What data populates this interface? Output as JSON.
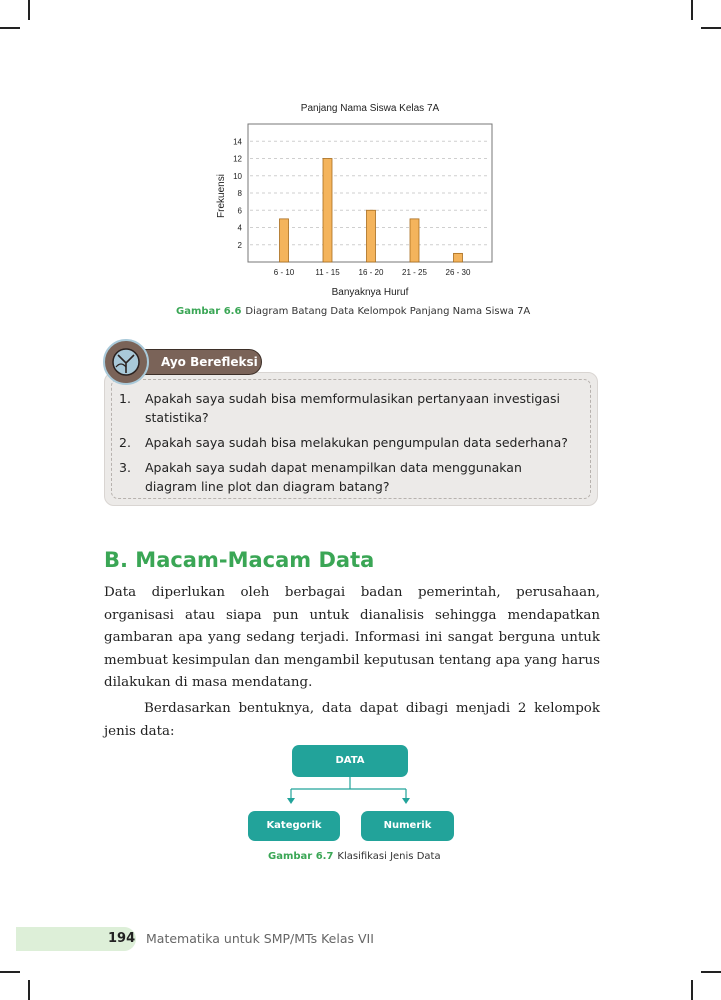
{
  "chart_data": {
    "type": "bar",
    "title": "Panjang Nama Siswa Kelas 7A",
    "xlabel": "Banyaknya Huruf",
    "ylabel": "Frekuensi",
    "categories": [
      "6 - 10",
      "11 - 15",
      "16 - 20",
      "21 - 25",
      "26 - 30"
    ],
    "values": [
      5,
      12,
      6,
      5,
      1
    ],
    "y_ticks": [
      2,
      4,
      6,
      8,
      10,
      12,
      14
    ],
    "ylim": [
      0,
      16
    ],
    "grid": "horizontal dashed",
    "bar_color": "#f4b45c"
  },
  "figure_6_6": {
    "label": "Gambar 6.6",
    "text": "Diagram Batang Data Kelompok Panjang Nama Siswa 7A"
  },
  "reflection": {
    "tab_label": "Ayo Berefleksi",
    "items": [
      {
        "num": "1.",
        "text": "Apakah saya sudah bisa memformulasikan pertanyaan investigasi statistika?"
      },
      {
        "num": "2.",
        "text": "Apakah saya sudah bisa melakukan pengumpulan data sederhana?"
      },
      {
        "num": "3.",
        "text": "Apakah saya sudah dapat menampilkan data menggunakan diagram line plot dan diagram batang?"
      }
    ]
  },
  "section": {
    "title": "B.  Macam-Macam Data"
  },
  "paragraphs": {
    "p1": "Data diperlukan oleh berbagai badan pemerintah, perusahaan, organisasi atau siapa pun untuk dianalisis sehingga mendapatkan gambaran apa yang sedang terjadi. Informasi ini sangat berguna untuk membuat kesimpulan dan mengambil keputusan tentang apa yang harus dilakukan di masa mendatang.",
    "p2": "Berdasarkan bentuknya, data dapat dibagi menjadi 2 kelompok jenis data:"
  },
  "diagram": {
    "root": "DATA",
    "left": "Kategorik",
    "right": "Numerik",
    "color": "#22a39a"
  },
  "figure_6_7": {
    "label": "Gambar 6.7",
    "text": "Klasifikasi Jenis Data"
  },
  "footer": {
    "page": "194",
    "book": "Matematika untuk SMP/MTs Kelas VII"
  }
}
